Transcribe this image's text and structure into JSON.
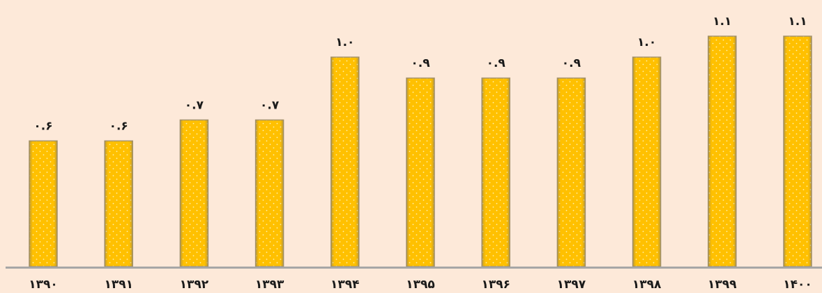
{
  "chart_data": {
    "type": "bar",
    "categories": [
      "۱۳۹۰",
      "۱۳۹۱",
      "۱۳۹۲",
      "۱۳۹۳",
      "۱۳۹۴",
      "۱۳۹۵",
      "۱۳۹۶",
      "۱۳۹۷",
      "۱۳۹۸",
      "۱۳۹۹",
      "۱۴۰۰"
    ],
    "values": [
      0.6,
      0.6,
      0.7,
      0.7,
      1.0,
      0.9,
      0.9,
      0.9,
      1.0,
      1.1,
      1.1
    ],
    "data_labels": [
      "۰.۶",
      "۰.۶",
      "۰.۷",
      "۰.۷",
      "۱.۰",
      "۰.۹",
      "۰.۹",
      "۰.۹",
      "۱.۰",
      "۱.۱",
      "۱.۱"
    ],
    "title": "",
    "xlabel": "",
    "ylabel": "",
    "ylim": [
      0,
      1.1
    ],
    "grid": false,
    "legend": "none",
    "colors": {
      "background": "#FDE9D9",
      "bar_fill": "#FFC000",
      "bar_edge": "#A6946A",
      "bar_dot": "#FFF2B3",
      "axis": "#A6A6A6",
      "text": "#1a1a1a"
    }
  }
}
